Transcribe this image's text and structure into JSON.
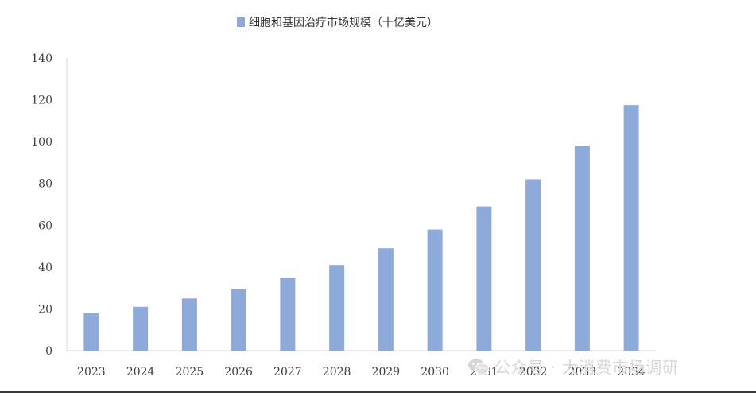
{
  "chart_data": {
    "type": "bar",
    "categories": [
      "2023",
      "2024",
      "2025",
      "2026",
      "2027",
      "2028",
      "2029",
      "2030",
      "2031",
      "2032",
      "2033",
      "2034"
    ],
    "series": [
      {
        "name": "细胞和基因治疗市场规模（十亿美元）",
        "values": [
          18,
          21,
          25,
          29.5,
          35,
          41,
          49,
          58,
          69,
          82,
          98,
          117.5
        ]
      }
    ],
    "yticks": [
      "0",
      "20",
      "40",
      "60",
      "80",
      "100",
      "120",
      "140"
    ],
    "ylim": [
      0,
      140
    ],
    "grid": false,
    "legend_position": "top-center",
    "bar_color": "#8eaadb",
    "axis_color": "#d9d9d9"
  },
  "watermark": {
    "icon": "wechat-icon",
    "text": "公众号 · 大消费市场调研"
  }
}
